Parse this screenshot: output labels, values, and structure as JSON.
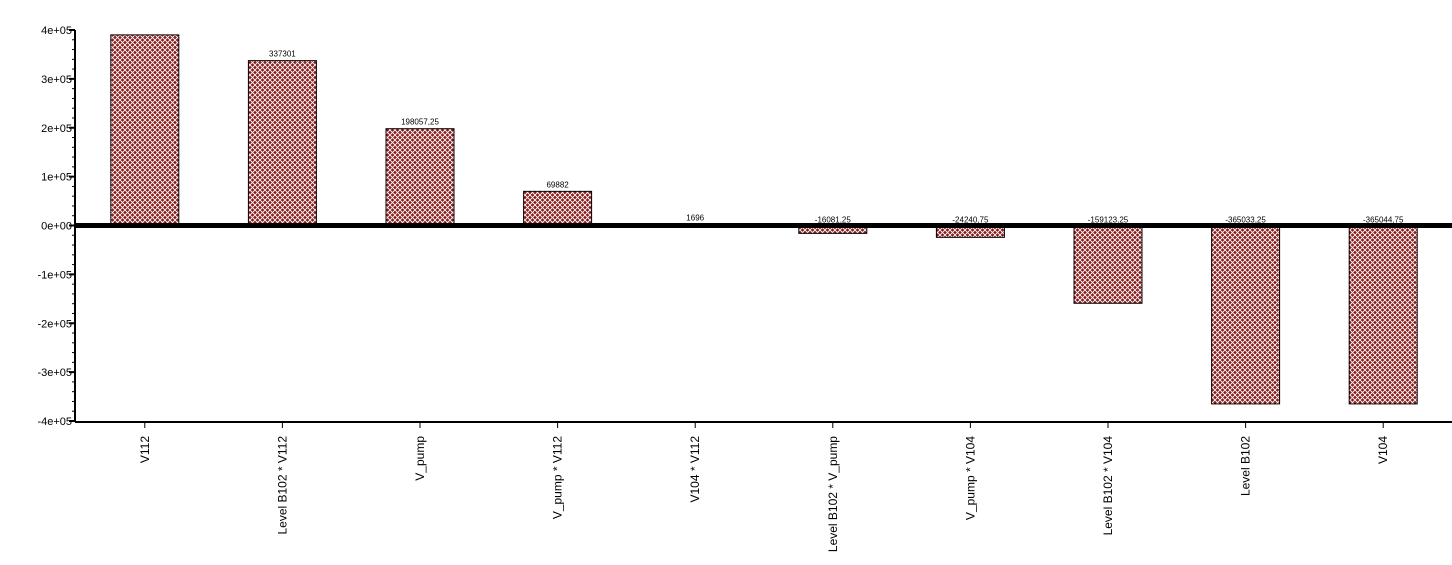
{
  "chart_data": {
    "type": "bar",
    "title": "",
    "xlabel": "",
    "ylabel": "",
    "ylim": [
      -400000,
      400000
    ],
    "yticks": [
      400000,
      300000,
      200000,
      100000,
      0,
      -100000,
      -200000,
      -300000,
      -400000
    ],
    "ytick_labels": [
      "4e+05",
      "3e+05",
      "2e+05",
      "1e+05",
      "0e+00",
      "-1e+05",
      "-2e+05",
      "-3e+05",
      "-4e+05"
    ],
    "categories": [
      "V112",
      "Level B102 * V112",
      "V_pump",
      "V_pump * V112",
      "V104 * V112",
      "Level B102 * V_pump",
      "V_pump * V104",
      "Level B102 * V104",
      "Level B102",
      "V104"
    ],
    "values": [
      390000,
      337301,
      198057.25,
      69882,
      1696,
      -16081.25,
      -24240.75,
      -159123.25,
      -365033.25,
      -365044.75
    ],
    "value_labels": [
      "",
      "337301",
      "198057,25",
      "69882",
      "1696",
      "-16081,25",
      "-24240,75",
      "-159123,25",
      "-365033,25",
      "-365044,75"
    ],
    "grid": false,
    "legend": "none",
    "colors": {
      "bar_fill": "#8b1a1a",
      "bar_hatch": "#ffffff",
      "axis": "#000000"
    }
  }
}
